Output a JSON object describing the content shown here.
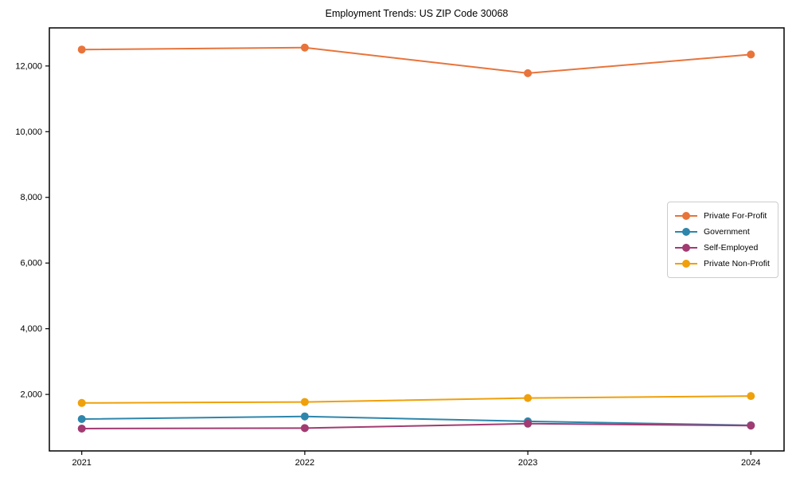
{
  "title": "Employment Trends: US ZIP Code 30068",
  "chart_data": {
    "type": "line",
    "title": "Employment Trends: US ZIP Code 30068",
    "categories": [
      "2021",
      "2022",
      "2023",
      "2024"
    ],
    "series": [
      {
        "name": "Private For-Profit",
        "color": "#E8743B",
        "values": [
          12500,
          12560,
          11780,
          12350
        ]
      },
      {
        "name": "Government",
        "color": "#2E86AB",
        "values": [
          1250,
          1330,
          1180,
          1060
        ]
      },
      {
        "name": "Self-Employed",
        "color": "#A23B72",
        "values": [
          960,
          975,
          1110,
          1050
        ]
      },
      {
        "name": "Private Non-Profit",
        "color": "#EFA00B",
        "values": [
          1740,
          1770,
          1890,
          1950
        ]
      }
    ],
    "xlabel": "",
    "ylabel": "",
    "y_ticks": [
      2000,
      4000,
      6000,
      8000,
      10000,
      12000
    ],
    "y_tick_labels": [
      "2,000",
      "4,000",
      "6,000",
      "8,000",
      "10,000",
      "12,000"
    ],
    "ylim": [
      280,
      13160
    ],
    "grid": false,
    "legend_position": "center right",
    "marker": "circle"
  }
}
